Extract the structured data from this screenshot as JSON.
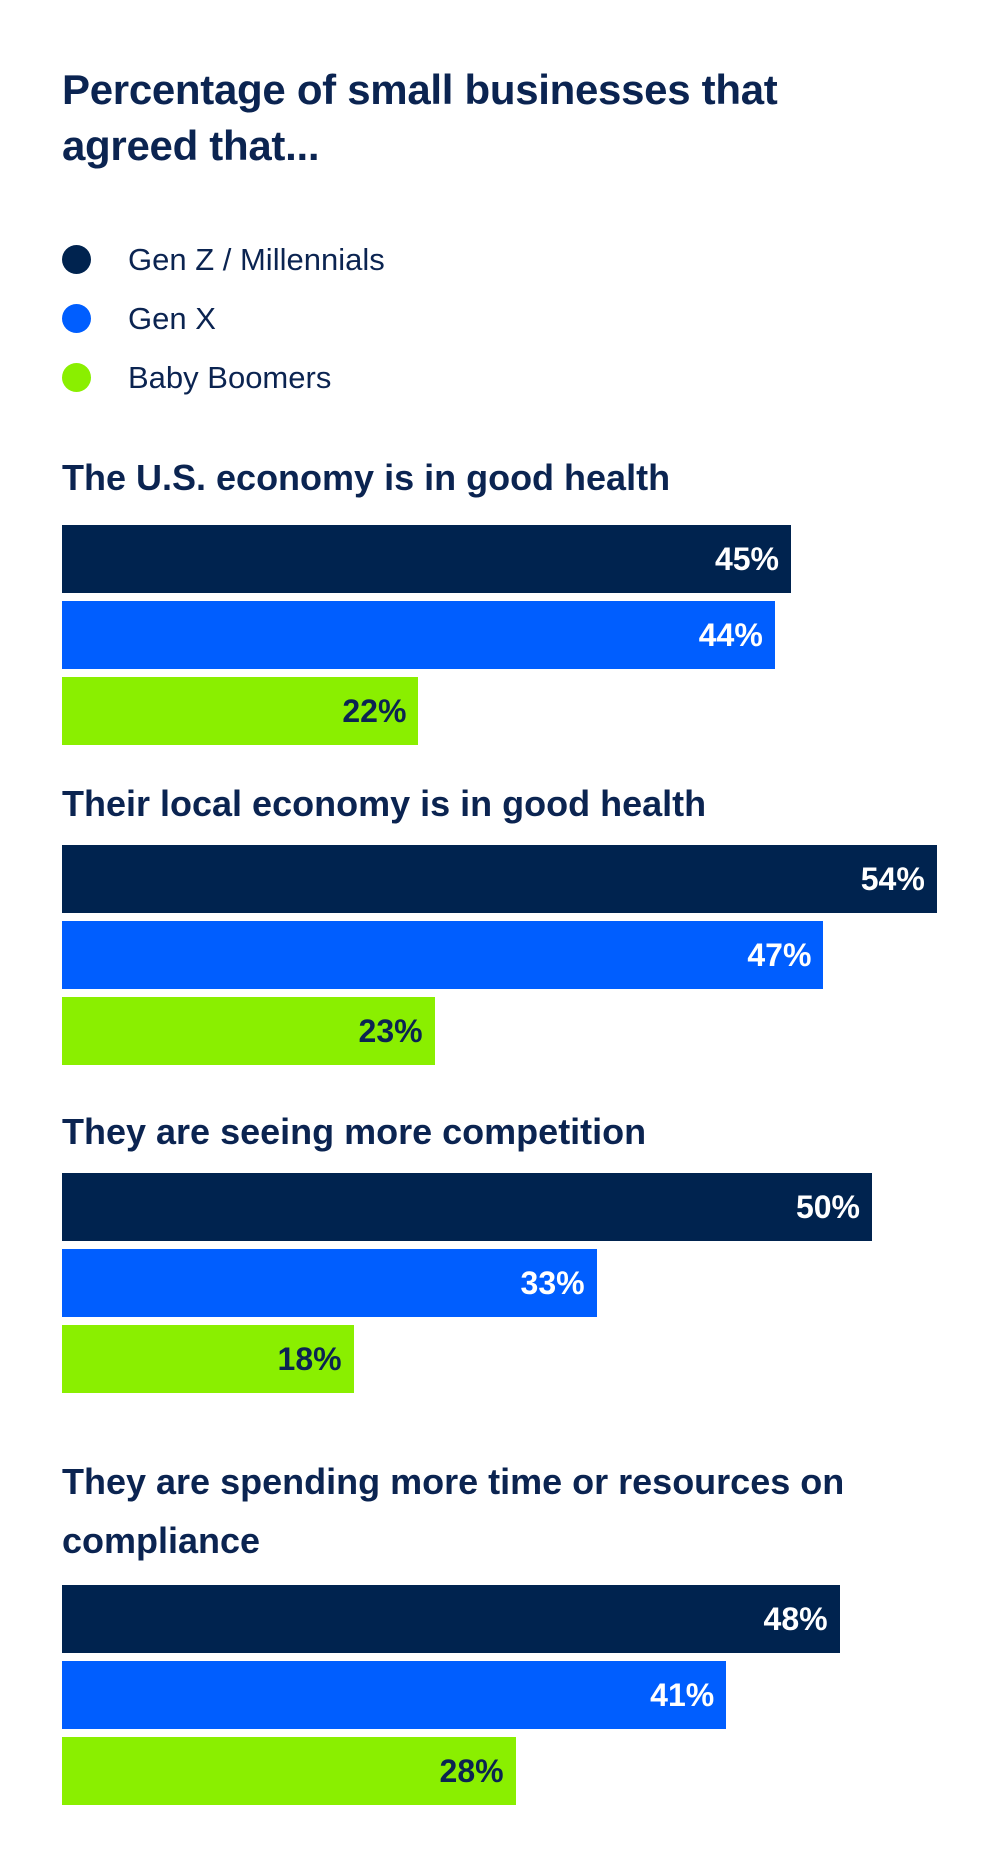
{
  "chart_data": {
    "type": "bar",
    "orientation": "horizontal",
    "title": "Percentage of small businesses that agreed that...",
    "categories": [
      "The U.S. economy is in good health",
      "Their local economy is in good health",
      "They are seeing more competition",
      "They are spending more time or resources on compliance"
    ],
    "series": [
      {
        "name": "Gen Z / Millennials",
        "color": "#00234f",
        "label_color": "#ffffff",
        "values": [
          45,
          54,
          50,
          48
        ]
      },
      {
        "name": "Gen X",
        "color": "#005eff",
        "label_color": "#ffffff",
        "values": [
          44,
          47,
          33,
          41
        ]
      },
      {
        "name": "Baby Boomers",
        "color": "#8aef00",
        "label_color": "#0b2451",
        "values": [
          22,
          23,
          18,
          28
        ]
      }
    ],
    "value_format": "{v}%",
    "legend_position": "top-left",
    "grid": false,
    "axes_shown": false
  }
}
